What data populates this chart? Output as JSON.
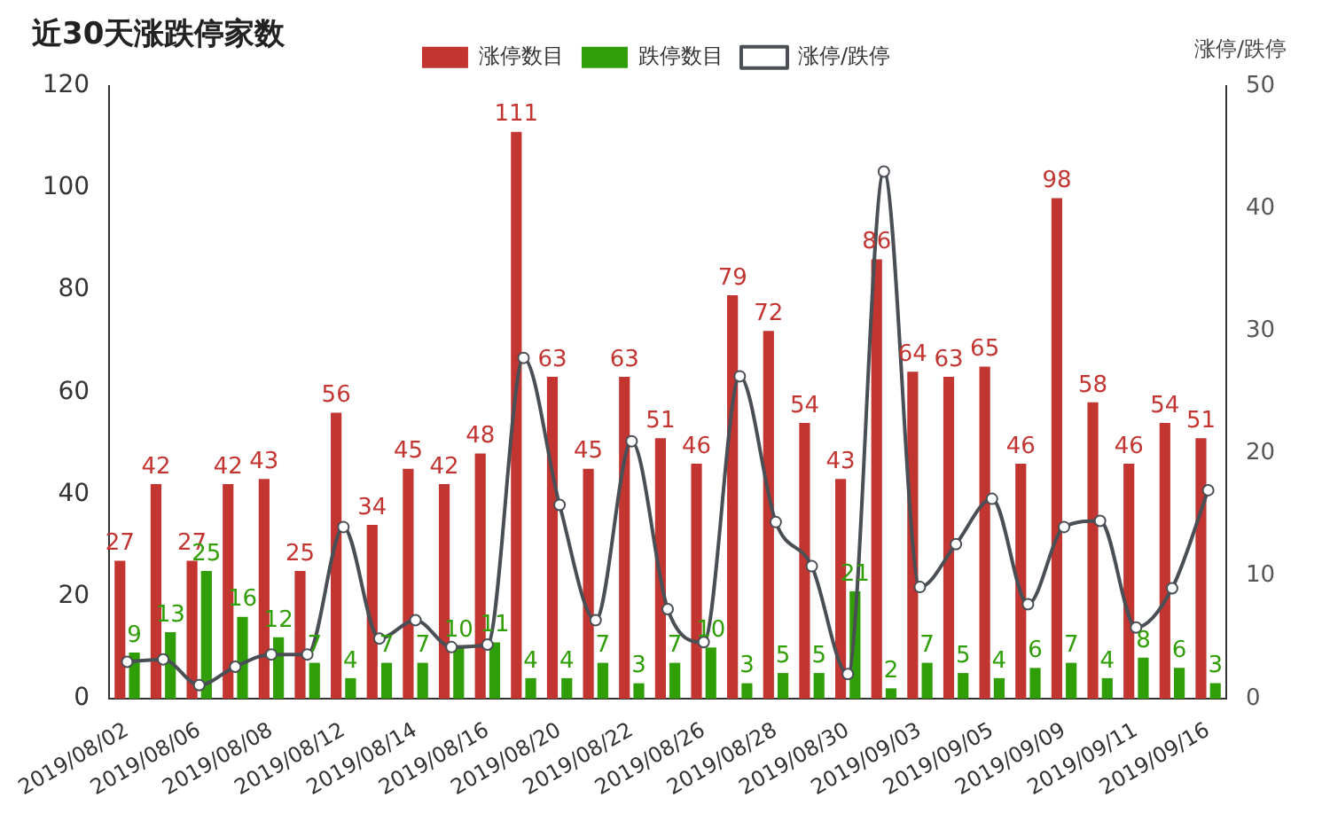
{
  "chart_data": {
    "type": "bar",
    "title": "近30天涨跌停家数",
    "y2label": "涨停/跌停",
    "categories": [
      "2019/08/02",
      null,
      "2019/08/06",
      null,
      "2019/08/08",
      null,
      "2019/08/12",
      null,
      "2019/08/14",
      null,
      "2019/08/16",
      null,
      "2019/08/20",
      null,
      "2019/08/22",
      null,
      "2019/08/26",
      null,
      "2019/08/28",
      null,
      "2019/08/30",
      null,
      "2019/09/03",
      null,
      "2019/09/05",
      null,
      "2019/09/09",
      null,
      "2019/09/11",
      null,
      "2019/09/16"
    ],
    "series": [
      {
        "name": "涨停数目",
        "color": "#c23531",
        "values": [
          27,
          42,
          27,
          42,
          43,
          25,
          56,
          34,
          45,
          42,
          48,
          111,
          63,
          45,
          63,
          51,
          46,
          79,
          72,
          54,
          43,
          86,
          64,
          63,
          65,
          46,
          98,
          58,
          46,
          54,
          51
        ],
        "value_labels": [
          "27",
          "42",
          "27",
          "42",
          "43",
          "25",
          "56",
          "34",
          "45",
          "42",
          "48",
          "111",
          "63",
          "45",
          "63",
          "51",
          "46",
          "79",
          "72",
          "54",
          "43",
          "86",
          "64",
          "63",
          "65",
          "46",
          "98",
          "58",
          "46",
          "54",
          "51"
        ]
      },
      {
        "name": "跌停数目",
        "color": "#2f9e07",
        "values": [
          9,
          13,
          25,
          16,
          12,
          7,
          4,
          7,
          7,
          10,
          11,
          4,
          4,
          7,
          3,
          7,
          10,
          3,
          5,
          5,
          21,
          2,
          7,
          5,
          4,
          6,
          7,
          4,
          8,
          6,
          3
        ],
        "value_labels": [
          "9",
          "13",
          "25",
          "16",
          "12",
          "7",
          "4",
          "7",
          "7",
          "10",
          "11",
          "4",
          "4",
          "7",
          "3",
          "7",
          "10",
          "3",
          "5",
          "5",
          "21",
          "2",
          "7",
          "5",
          "4",
          "6",
          "7",
          "4",
          "8",
          "6",
          "3"
        ]
      },
      {
        "name": "涨停/跌停",
        "type": "line",
        "axis": "y2",
        "color": "#4a4f55",
        "marker": "circle",
        "values": [
          3.0,
          3.2,
          1.1,
          2.6,
          3.6,
          3.6,
          14.0,
          4.9,
          6.4,
          4.2,
          4.4,
          27.8,
          15.8,
          6.4,
          21.0,
          7.3,
          4.6,
          26.3,
          14.4,
          10.8,
          2.0,
          43.0,
          9.1,
          12.6,
          16.3,
          7.7,
          14.0,
          14.5,
          5.8,
          9.0,
          17.0
        ]
      }
    ],
    "ylim": [
      0,
      120
    ],
    "yticks": [
      0,
      20,
      40,
      60,
      80,
      100,
      120
    ],
    "y2lim": [
      0,
      50
    ],
    "y2ticks": [
      0,
      10,
      20,
      30,
      40,
      50
    ],
    "grid": false,
    "legend": "top"
  }
}
